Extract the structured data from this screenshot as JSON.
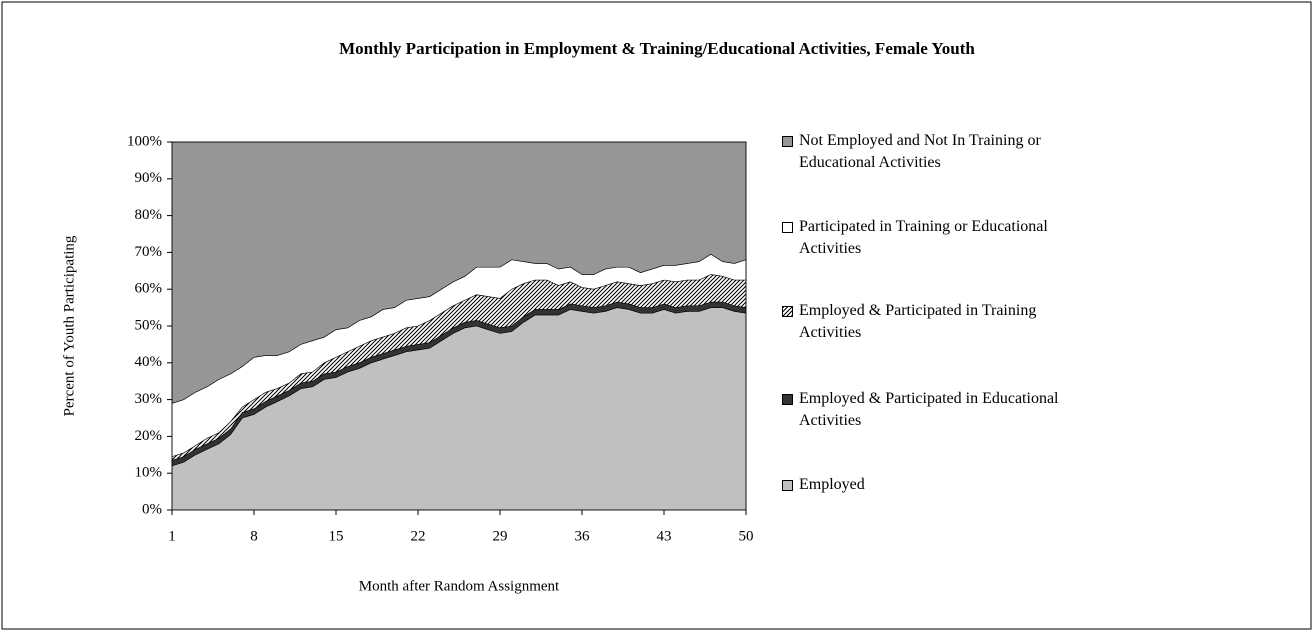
{
  "chart_data": {
    "type": "stacked-area",
    "title": "Monthly Participation in Employment & Training/Educational Activities, Female Youth",
    "xlabel": "Month after Random Assignment",
    "ylabel": "Percent of Youth Participating",
    "x": [
      1,
      2,
      3,
      4,
      5,
      6,
      7,
      8,
      9,
      10,
      11,
      12,
      13,
      14,
      15,
      16,
      17,
      18,
      19,
      20,
      21,
      22,
      23,
      24,
      25,
      26,
      27,
      28,
      29,
      30,
      31,
      32,
      33,
      34,
      35,
      36,
      37,
      38,
      39,
      40,
      41,
      42,
      43,
      44,
      45,
      46,
      47,
      48,
      49,
      50
    ],
    "xlim": [
      1,
      50
    ],
    "xticks": [
      1,
      8,
      15,
      22,
      29,
      36,
      43,
      50
    ],
    "ylim": [
      0,
      100
    ],
    "yticks": [
      {
        "value": 0,
        "label": "0%"
      },
      {
        "value": 10,
        "label": "10%"
      },
      {
        "value": 20,
        "label": "20%"
      },
      {
        "value": 30,
        "label": "30%"
      },
      {
        "value": 40,
        "label": "40%"
      },
      {
        "value": 50,
        "label": "50%"
      },
      {
        "value": 60,
        "label": "60%"
      },
      {
        "value": 70,
        "label": "70%"
      },
      {
        "value": 80,
        "label": "80%"
      },
      {
        "value": 90,
        "label": "90%"
      },
      {
        "value": 100,
        "label": "100%"
      }
    ],
    "series": [
      {
        "name": "Employed",
        "color": "#c0c0c0",
        "values": [
          12,
          13,
          15,
          16.5,
          18,
          20.5,
          25,
          26,
          28,
          29.5,
          31,
          33,
          33.5,
          35.5,
          36,
          37.5,
          38.5,
          40,
          41,
          42,
          43,
          43.5,
          44,
          46,
          48,
          49.5,
          50,
          49,
          48,
          48.5,
          51,
          53,
          53,
          53,
          54.5,
          54,
          53.5,
          54,
          55,
          54.5,
          53.5,
          53.5,
          54.5,
          53.5,
          54,
          54,
          55,
          55,
          54,
          53.5
        ]
      },
      {
        "name": "Employed & Participated in Educational Activities",
        "color": "#333333",
        "values": [
          1.5,
          1.5,
          1.5,
          1.5,
          1.5,
          1.5,
          1.5,
          1.5,
          1.5,
          1.5,
          1.5,
          1.5,
          1.5,
          1.5,
          1.5,
          1.5,
          1.5,
          1.5,
          1.5,
          1.5,
          1.5,
          1.5,
          1.5,
          1.5,
          1.5,
          1.5,
          1.5,
          1.5,
          1.5,
          1.5,
          1.5,
          1.5,
          1.5,
          1.5,
          1.5,
          1.5,
          1.5,
          1.5,
          1.5,
          1.5,
          1.5,
          1.5,
          1.5,
          1.5,
          1.5,
          1.5,
          1.5,
          1.5,
          1.5,
          1.5
        ]
      },
      {
        "name": "Employed & Participated in Training Activities",
        "color": "#666666",
        "hatch": true,
        "values": [
          1,
          1,
          1,
          1.5,
          1.5,
          2,
          1.5,
          2.5,
          2.5,
          2,
          2,
          2.5,
          2.5,
          3,
          4,
          4,
          4.5,
          4.5,
          4.5,
          4.5,
          5,
          5,
          6,
          6,
          6,
          6,
          7,
          7.5,
          8,
          10,
          9,
          8,
          8,
          6.5,
          6,
          5,
          5,
          5.5,
          5.5,
          5.5,
          6,
          6.5,
          6.5,
          7,
          7,
          7,
          7.5,
          7,
          7,
          7.5
        ]
      },
      {
        "name": "Participated in Training or Educational Activities",
        "color": "#ffffff",
        "values": [
          14.5,
          14.5,
          14.5,
          14,
          14.5,
          13,
          11,
          11.5,
          10,
          9,
          8.5,
          8,
          8.5,
          7,
          7.5,
          6.5,
          7,
          6.5,
          7.5,
          7,
          7.5,
          7.5,
          6.5,
          6.5,
          6.5,
          6.5,
          7.5,
          8,
          8.5,
          8,
          6,
          4.5,
          4.5,
          4.5,
          4,
          3.5,
          4,
          4.5,
          4,
          4.5,
          3.5,
          4,
          4,
          4.5,
          4.5,
          5,
          5.5,
          4,
          4.5,
          5.5
        ]
      },
      {
        "name": "Not Employed and Not In Training or Educational Activities",
        "color": "#969696",
        "values": [
          71,
          70,
          68,
          66.5,
          64.5,
          63,
          61,
          58.5,
          58,
          58,
          57,
          55,
          54,
          53,
          51,
          50.5,
          48.5,
          47.5,
          45.5,
          45,
          43,
          42.5,
          42,
          40,
          38,
          36.5,
          34,
          34,
          34,
          32,
          32.5,
          33,
          33,
          34.5,
          34,
          36,
          36,
          34.5,
          34,
          34,
          35.5,
          34.5,
          33.5,
          33.5,
          33,
          32.5,
          30.5,
          32.5,
          33,
          32
        ]
      }
    ]
  }
}
